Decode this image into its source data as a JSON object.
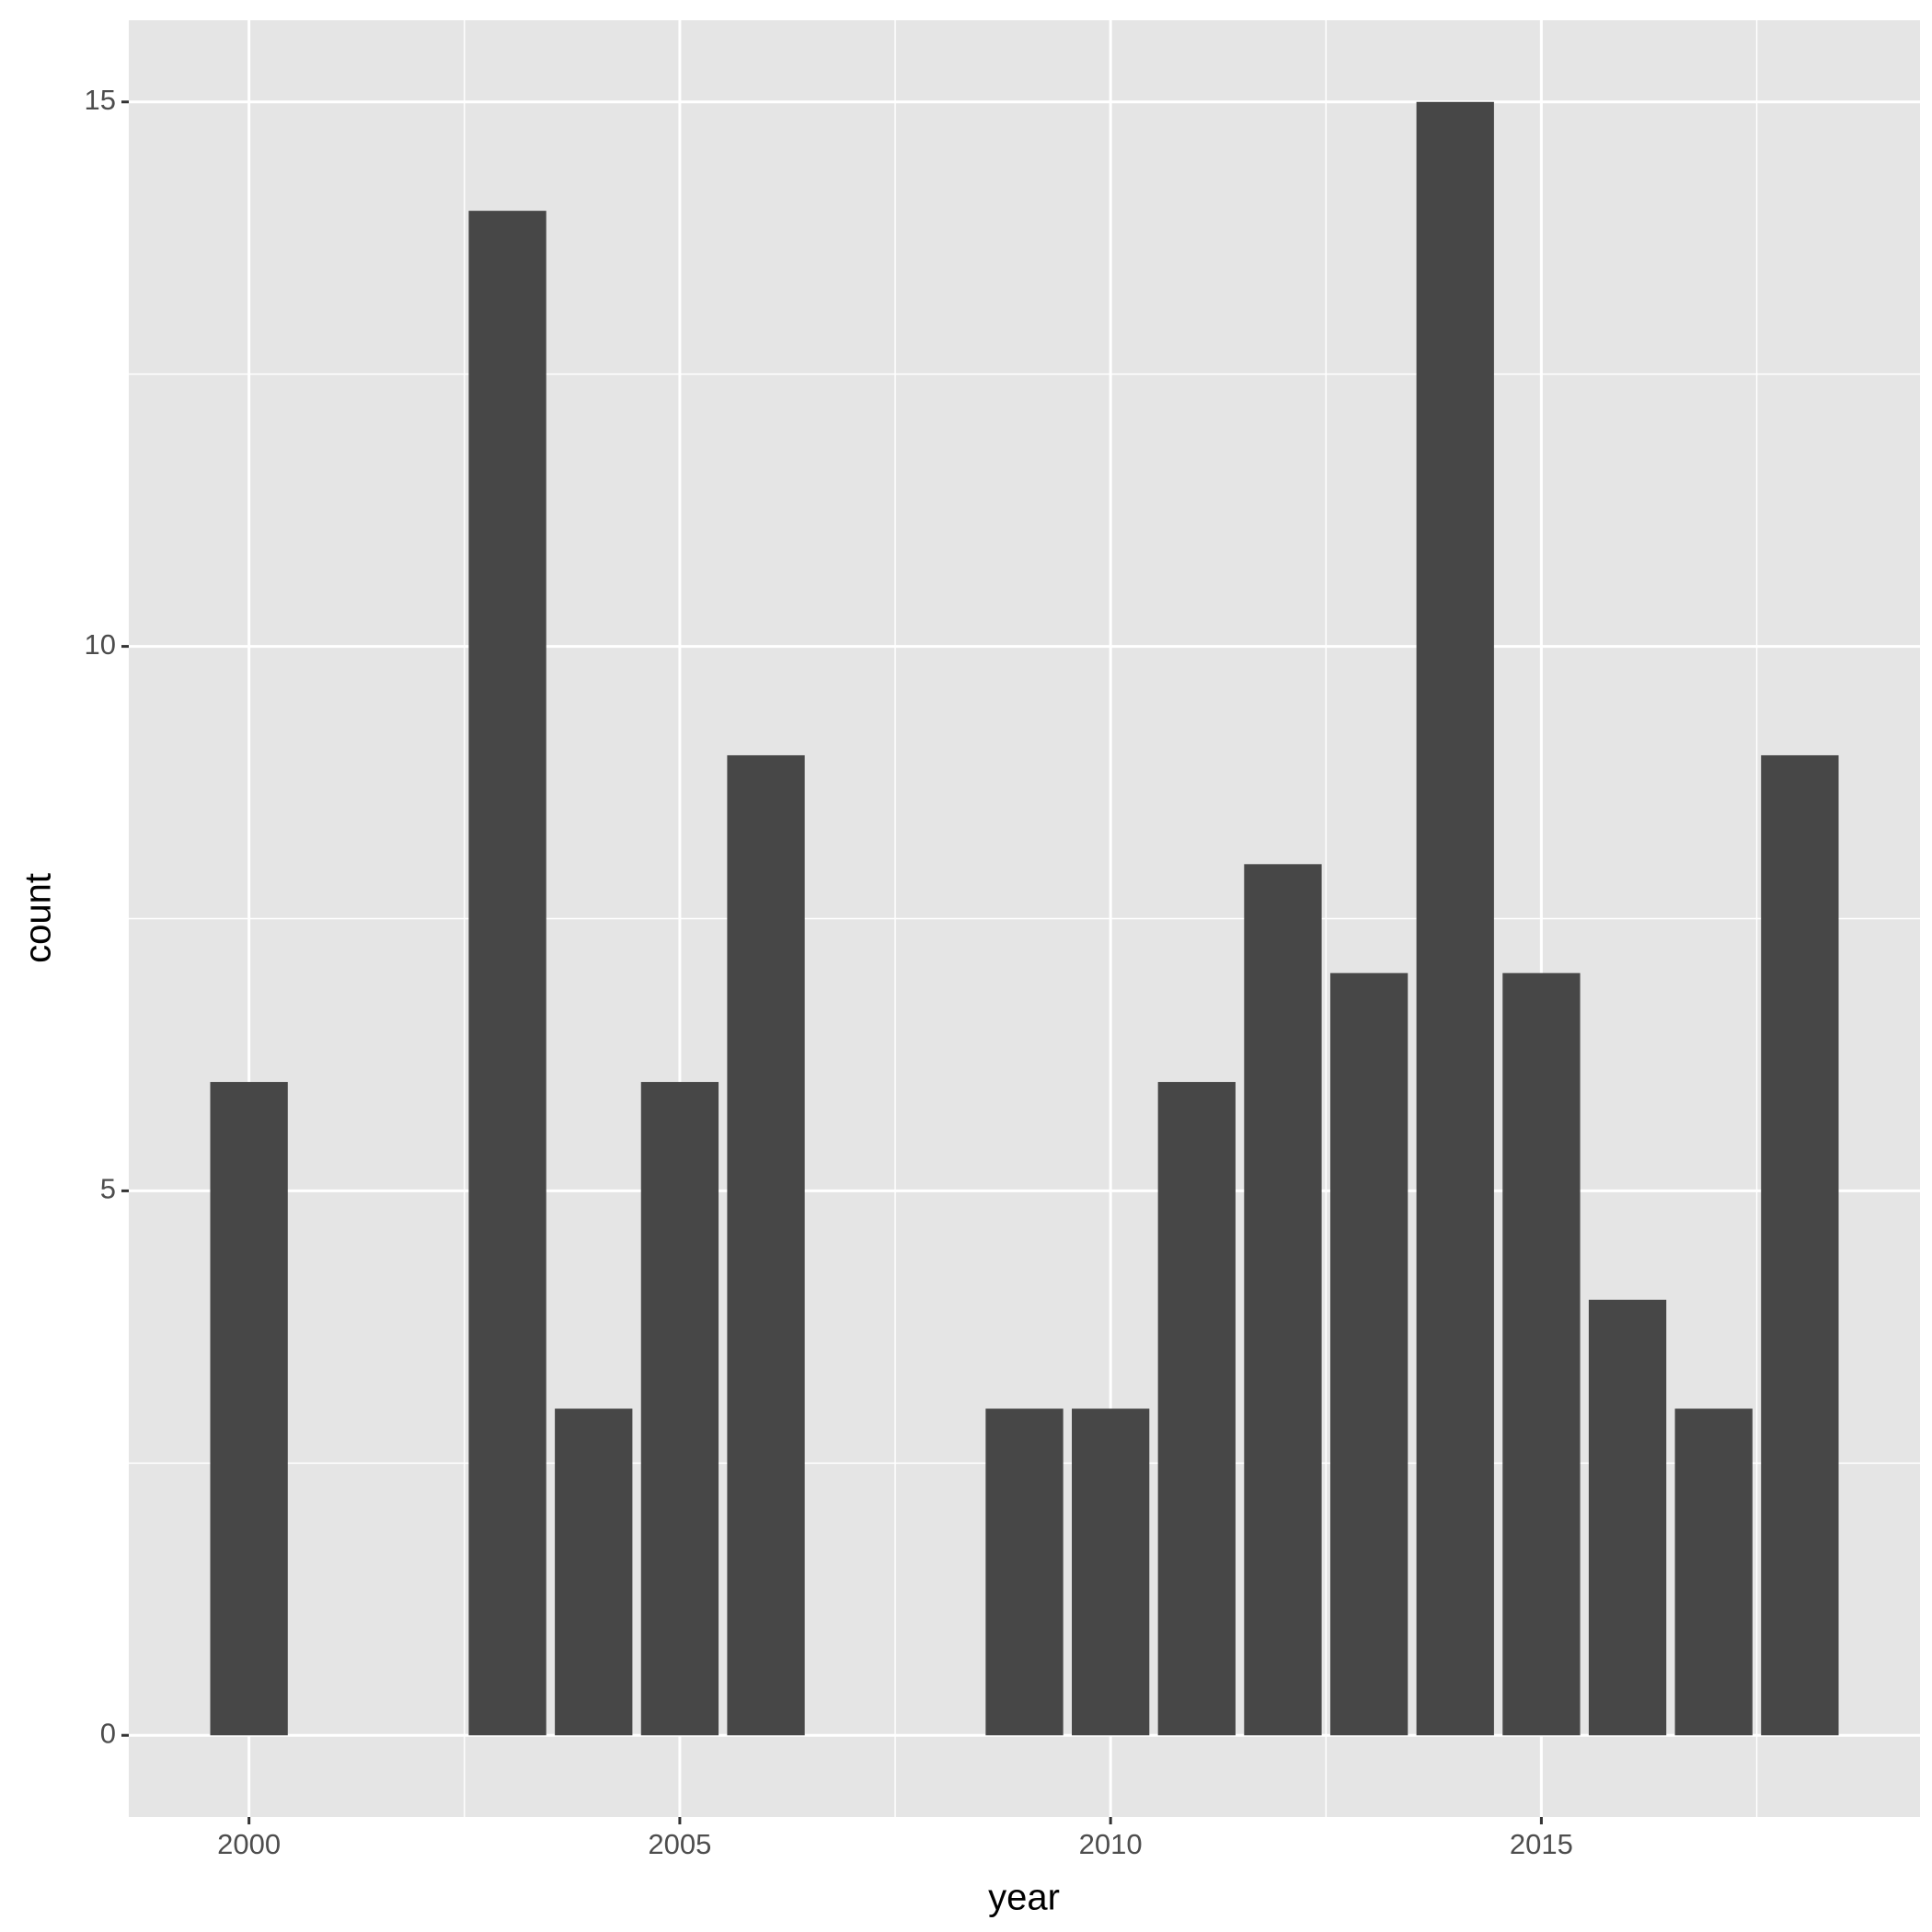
{
  "chart_data": {
    "type": "bar",
    "x_label": "year",
    "y_label": "count",
    "x": [
      2000,
      2003,
      2004,
      2005,
      2006,
      2009,
      2010,
      2011,
      2012,
      2013,
      2014,
      2015,
      2016,
      2017,
      2018
    ],
    "values": [
      6,
      14,
      3,
      6,
      9,
      3,
      3,
      6,
      8,
      7,
      15,
      7,
      4,
      3,
      9
    ],
    "color": "#474747",
    "bar_width": 0.9,
    "xlim": [
      1998.605,
      2019.395
    ],
    "xticks": [
      2000,
      2005,
      2010,
      2015
    ],
    "x_minor_ticks": [
      2002.5,
      2007.5,
      2012.5,
      2017.5
    ],
    "ylim": [
      -0.75,
      15.75
    ],
    "yticks": [
      0,
      5,
      10,
      15
    ],
    "y_minor_ticks": [
      2.5,
      7.5,
      12.5
    ],
    "grid": true,
    "panel_color": "#e5e5e5"
  }
}
